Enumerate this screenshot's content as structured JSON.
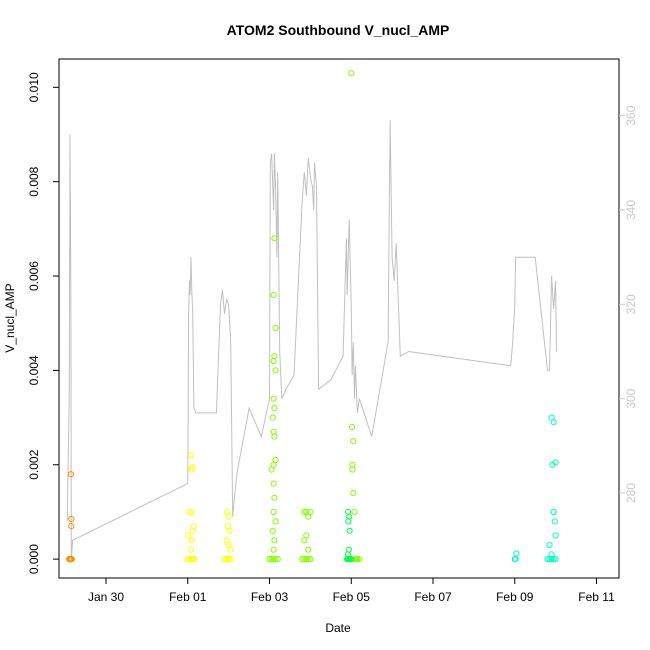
{
  "chart_data": {
    "type": "scatter",
    "title": "ATOM2 Southbound V_nucl_AMP",
    "xlabel": "Date",
    "ylabel": "V_nucl_AMP",
    "x_ticks": [
      "Jan 30",
      "Feb 01",
      "Feb 03",
      "Feb 05",
      "Feb 07",
      "Feb 09",
      "Feb 11"
    ],
    "x_tick_days": [
      0,
      2,
      4,
      6,
      8,
      10,
      12
    ],
    "xlim_days": [
      -1.15,
      12.55
    ],
    "y_ticks": [
      "0.000",
      "0.002",
      "0.004",
      "0.006",
      "0.008",
      "0.010"
    ],
    "y_tick_values": [
      0,
      0.002,
      0.004,
      0.006,
      0.008,
      0.01
    ],
    "ylim": [
      -0.0004,
      0.0106
    ],
    "y2_ticks": [
      "280",
      "300",
      "320",
      "340",
      "360"
    ],
    "y2_tick_values": [
      280,
      300,
      320,
      340,
      360
    ],
    "y2lim": [
      262,
      372
    ],
    "grid": false,
    "line_color": "#c0c0c0",
    "point_colors": [
      "#ff8c00",
      "#ffff00",
      "#80ff00",
      "#00ff40",
      "#00ffc0"
    ],
    "point_groups": [
      {
        "color": "#ff8c00",
        "x_days": [
          -0.9,
          -0.88,
          -0.86,
          -0.85,
          -0.84,
          -0.86,
          -0.85,
          -0.85,
          -0.87
        ],
        "y": [
          0,
          0,
          0,
          0,
          0,
          0.0018,
          0.00085,
          0.0007,
          0
        ]
      },
      {
        "color": "#ffff00",
        "x_days": [
          2.0,
          2.05,
          2.1,
          2.12,
          2.15,
          2.08,
          2.1,
          2.12,
          2.05,
          2.1,
          2.15,
          2.0,
          2.1,
          2.08,
          2.12,
          2.9,
          2.95,
          3.0,
          3.05,
          3.0,
          2.98,
          3.02,
          2.95,
          3.0,
          3.05,
          2.97,
          3.0
        ],
        "y": [
          0,
          0,
          0,
          0,
          0,
          0.0022,
          0.0019,
          0.00195,
          0.001,
          0.00098,
          0.0007,
          0.0005,
          0.0004,
          0.0002,
          0.0006,
          0,
          0,
          0,
          0,
          0.0009,
          0.0007,
          0.0006,
          0.0004,
          0.0003,
          0.0002,
          0.001,
          0
        ]
      },
      {
        "color": "#80ff00",
        "x_days": [
          4.0,
          4.05,
          4.1,
          4.15,
          4.2,
          4.12,
          4.1,
          4.15,
          4.12,
          4.1,
          4.15,
          4.1,
          4.12,
          4.08,
          4.1,
          4.12,
          4.15,
          4.1,
          4.05,
          4.1,
          4.12,
          4.1,
          4.15,
          4.08,
          4.12,
          4.1,
          4.8,
          4.85,
          4.9,
          4.95,
          5.0,
          4.85,
          4.9,
          4.95,
          5.0,
          4.9,
          4.85,
          4.95,
          6.0,
          6.02,
          6.05,
          6.03,
          6.05,
          6.08,
          6.1,
          6.12,
          6.15,
          6.2,
          6.03
        ],
        "y": [
          0,
          0,
          0,
          0,
          0,
          0.0068,
          0.0056,
          0.0049,
          0.0043,
          0.0042,
          0.004,
          0.0034,
          0.0032,
          0.003,
          0.0027,
          0.0026,
          0.0021,
          0.002,
          0.0019,
          0.0016,
          0.0013,
          0.001,
          0.0008,
          0.0006,
          0.0004,
          0.0002,
          0,
          0,
          0,
          0,
          0,
          0.001,
          0.001,
          0.0009,
          0.001,
          0.0005,
          0.0004,
          0.0002,
          0.0103,
          0.0028,
          0.0025,
          0.0019,
          0.0014,
          0.001,
          0,
          0,
          0,
          0,
          0.002
        ]
      },
      {
        "color": "#00ff40",
        "x_days": [
          5.9,
          5.92,
          5.95,
          5.98,
          6.0,
          5.92,
          5.95,
          5.93,
          5.96,
          5.94,
          5.92
        ],
        "y": [
          0,
          0,
          0,
          0,
          0,
          0.001,
          0.0009,
          0.0008,
          0.0006,
          0.0002,
          0.0001
        ]
      },
      {
        "color": "#00ffc0",
        "x_days": [
          10.0,
          10.02,
          10.04,
          10.8,
          10.85,
          10.9,
          10.95,
          11.0,
          10.9,
          10.95,
          11.0,
          10.92,
          10.95,
          10.98,
          11.0,
          10.85,
          10.9,
          10.95
        ],
        "y": [
          0,
          0,
          0.00012,
          0,
          0,
          0,
          0,
          0,
          0.003,
          0.0029,
          0.00205,
          0.002,
          0.001,
          0.0008,
          0.0005,
          0.0003,
          0.0001,
          0.001
        ]
      }
    ],
    "line_series": {
      "name": "",
      "x_days": [
        -0.95,
        -0.9,
        -0.88,
        -0.86,
        -0.85,
        -0.83,
        -0.82,
        2.0,
        2.02,
        2.04,
        2.06,
        2.08,
        2.1,
        2.12,
        2.15,
        2.2,
        2.25,
        2.3,
        2.35,
        2.4,
        2.5,
        2.6,
        2.7,
        2.8,
        2.85,
        2.9,
        2.95,
        3.0,
        3.05,
        3.1,
        3.2,
        3.5,
        3.8,
        4.0,
        4.02,
        4.05,
        4.08,
        4.1,
        4.12,
        4.15,
        4.18,
        4.2,
        4.25,
        4.3,
        4.4,
        4.6,
        4.8,
        4.85,
        4.9,
        4.95,
        5.0,
        5.02,
        5.05,
        5.08,
        5.1,
        5.15,
        5.2,
        5.5,
        5.8,
        5.88,
        5.9,
        5.95,
        6.0,
        6.02,
        6.05,
        6.08,
        6.1,
        6.15,
        6.2,
        6.5,
        6.9,
        6.95,
        7.0,
        7.05,
        7.1,
        7.2,
        7.4,
        9.9,
        9.95,
        10.0,
        10.02,
        10.5,
        10.8,
        10.85,
        10.9,
        10.95,
        11.0,
        11.02
      ],
      "y2": [
        274,
        300,
        356,
        320,
        266,
        268,
        270,
        282,
        318,
        325,
        322,
        330,
        323,
        318,
        298,
        297,
        297,
        297,
        297,
        297,
        297,
        297,
        297,
        320,
        323,
        318,
        321,
        320,
        312,
        275,
        284,
        298,
        292,
        300,
        350,
        352,
        345,
        340,
        352,
        345,
        330,
        348,
        310,
        300,
        302,
        305,
        342,
        348,
        343,
        351,
        347,
        346,
        345,
        340,
        350,
        345,
        302,
        304,
        309,
        334,
        322,
        338,
        319,
        305,
        312,
        300,
        307,
        297,
        300,
        292,
        312,
        359,
        330,
        325,
        333,
        309,
        310,
        307,
        312,
        320,
        330,
        330,
        306,
        306,
        326,
        319,
        325,
        310
      ]
    }
  }
}
